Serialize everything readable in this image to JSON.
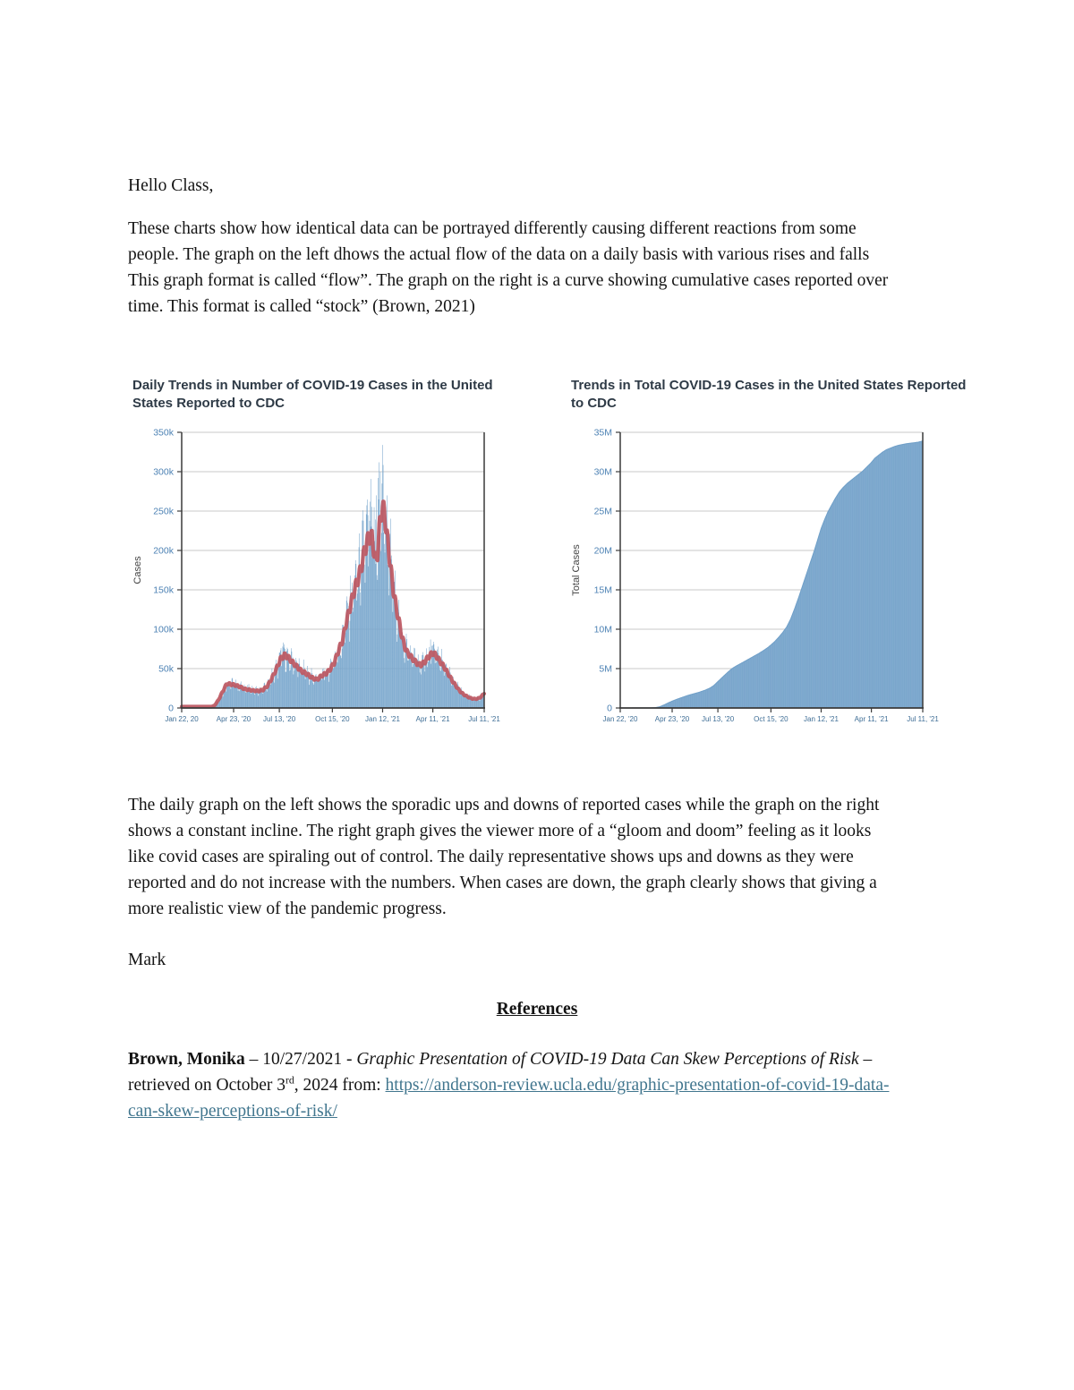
{
  "greeting": "Hello Class,",
  "intro_paragraph": "These charts show how identical data can be portrayed differently causing different reactions from some people. The graph on the left dhows the actual flow of the data on a daily basis with various rises and falls This graph format is called “flow”.  The graph on the right is a curve showing cumulative cases reported over time. This format is called “stock” (Brown, 2021)",
  "analysis_paragraph": "The daily graph on the left shows the sporadic ups and downs of reported cases while the graph on the right shows a constant incline. The right graph gives the viewer more of a “gloom and doom” feeling as it looks like covid cases are spiraling out of control. The daily representative shows ups and downs as they were reported and do not increase with the numbers. When cases are down, the graph clearly shows that giving a more realistic view of the pandemic progress.",
  "signature": "Mark",
  "references": {
    "heading": "References",
    "entry": {
      "author": "Brown, Monika",
      "dash1": " – ",
      "date": "10/27/2021",
      "dash2": " - ",
      "title_italic": "Graphic Presentation of COVID-19 Data Can Skew Perceptions of Risk",
      "retrieved_pre": " – retrieved on October 3",
      "ordinal": "rd",
      "retrieved_post": ", 2024 from: ",
      "link": "https://anderson-review.ucla.edu/graphic-presentation-of-covid-19-data-can-skew-perceptions-of-risk/"
    }
  },
  "chart_data": [
    {
      "type": "bar",
      "title": "Daily Trends in Number of COVID-19 Cases in the United States Reported to CDC",
      "xlabel": "",
      "ylabel": "Cases",
      "ylim": [
        0,
        350000
      ],
      "value_units": "thousands of cases",
      "ytick_labels": [
        "0",
        "50k",
        "100k",
        "150k",
        "200k",
        "250k",
        "300k",
        "350k"
      ],
      "xtick_labels": [
        "Jan 22, 20",
        "Apr 23, '20",
        "Jul 13, '20",
        "Oct 15, '20",
        "Jan 12, '21",
        "Apr 11, '21",
        "Jul 11, '21"
      ],
      "xtick_days": [
        0,
        92,
        173,
        267,
        356,
        445,
        536
      ],
      "x_span_days": 536,
      "grid": true,
      "legend": "none",
      "series": [
        {
          "name": "daily-reported-cases-bars",
          "color": "#79a7cd"
        },
        {
          "name": "7-day-moving-average-line",
          "color": "#bd5862"
        }
      ],
      "average_line_points": [
        [
          0,
          0.5
        ],
        [
          50,
          1
        ],
        [
          58,
          3
        ],
        [
          65,
          10
        ],
        [
          72,
          20
        ],
        [
          80,
          31
        ],
        [
          88,
          30
        ],
        [
          95,
          29
        ],
        [
          103,
          27
        ],
        [
          112,
          24
        ],
        [
          120,
          23
        ],
        [
          128,
          22
        ],
        [
          136,
          21.5
        ],
        [
          144,
          23
        ],
        [
          152,
          28
        ],
        [
          160,
          38
        ],
        [
          168,
          50
        ],
        [
          175,
          62
        ],
        [
          182,
          67
        ],
        [
          188,
          65
        ],
        [
          195,
          59
        ],
        [
          202,
          54
        ],
        [
          212,
          47
        ],
        [
          222,
          43
        ],
        [
          232,
          38
        ],
        [
          240,
          36
        ],
        [
          248,
          41
        ],
        [
          256,
          44
        ],
        [
          262,
          48
        ],
        [
          270,
          57
        ],
        [
          278,
          73
        ],
        [
          285,
          86
        ],
        [
          292,
          110
        ],
        [
          299,
          130
        ],
        [
          306,
          150
        ],
        [
          313,
          165
        ],
        [
          318,
          178
        ],
        [
          323,
          196
        ],
        [
          328,
          210
        ],
        [
          333,
          218
        ],
        [
          337,
          216
        ],
        [
          341,
          198
        ],
        [
          344,
          186
        ],
        [
          347,
          196
        ],
        [
          350,
          226
        ],
        [
          353,
          246
        ],
        [
          356,
          254
        ],
        [
          359,
          250
        ],
        [
          362,
          230
        ],
        [
          366,
          205
        ],
        [
          370,
          180
        ],
        [
          375,
          150
        ],
        [
          380,
          128
        ],
        [
          385,
          110
        ],
        [
          390,
          92
        ],
        [
          395,
          78
        ],
        [
          400,
          70
        ],
        [
          405,
          66
        ],
        [
          410,
          62
        ],
        [
          415,
          58
        ],
        [
          420,
          55
        ],
        [
          425,
          55
        ],
        [
          430,
          58
        ],
        [
          435,
          63
        ],
        [
          440,
          67
        ],
        [
          445,
          70
        ],
        [
          450,
          67
        ],
        [
          455,
          62
        ],
        [
          460,
          57
        ],
        [
          465,
          52
        ],
        [
          470,
          46
        ],
        [
          475,
          40
        ],
        [
          480,
          34
        ],
        [
          485,
          29
        ],
        [
          490,
          24
        ],
        [
          495,
          20
        ],
        [
          500,
          17
        ],
        [
          505,
          15
        ],
        [
          510,
          13
        ],
        [
          515,
          12
        ],
        [
          520,
          11.5
        ],
        [
          525,
          12
        ],
        [
          529,
          13.5
        ],
        [
          533,
          16
        ],
        [
          536,
          19
        ]
      ],
      "bar_spikes": {
        "176": 76,
        "179": 78,
        "299": 168,
        "320": 238,
        "327": 246,
        "334": 262,
        "341": 255,
        "345": 270,
        "348": 292,
        "350": 312,
        "352": 300,
        "355": 285,
        "443": 79,
        "447": 81
      },
      "tick_label_color": "#4d82b4",
      "xtick_label_color": "#3f6e96",
      "title_color": "#2e3a46"
    },
    {
      "type": "area",
      "title": "Trends in Total COVID-19 Cases in the United States Reported to CDC",
      "xlabel": "",
      "ylabel": "Total Cases",
      "ylim": [
        0,
        35000000
      ],
      "value_units": "millions of cases",
      "ytick_labels": [
        "0",
        "5M",
        "10M",
        "15M",
        "20M",
        "25M",
        "30M",
        "35M"
      ],
      "xtick_labels": [
        "Jan 22, '20",
        "Apr 23, '20",
        "Jul 13, '20",
        "Oct 15, '20",
        "Jan 12, '21",
        "Apr 11, '21",
        "Jul 11, '21"
      ],
      "xtick_days": [
        0,
        92,
        173,
        267,
        356,
        445,
        536
      ],
      "x_span_days": 536,
      "grid": true,
      "legend": "none",
      "series": [
        {
          "name": "cumulative-total-cases",
          "color": "#93b6d6"
        }
      ],
      "cumulative_points": [
        [
          0,
          0
        ],
        [
          55,
          0.02
        ],
        [
          62,
          0.05
        ],
        [
          70,
          0.16
        ],
        [
          78,
          0.4
        ],
        [
          85,
          0.65
        ],
        [
          92,
          0.87
        ],
        [
          100,
          1.1
        ],
        [
          110,
          1.35
        ],
        [
          120,
          1.6
        ],
        [
          130,
          1.8
        ],
        [
          140,
          2.0
        ],
        [
          150,
          2.25
        ],
        [
          158,
          2.5
        ],
        [
          165,
          2.8
        ],
        [
          173,
          3.35
        ],
        [
          181,
          3.9
        ],
        [
          190,
          4.5
        ],
        [
          198,
          5.0
        ],
        [
          206,
          5.35
        ],
        [
          215,
          5.7
        ],
        [
          225,
          6.1
        ],
        [
          235,
          6.5
        ],
        [
          245,
          6.9
        ],
        [
          255,
          7.35
        ],
        [
          262,
          7.7
        ],
        [
          267,
          8.0
        ],
        [
          274,
          8.45
        ],
        [
          281,
          9.0
        ],
        [
          288,
          9.6
        ],
        [
          295,
          10.3
        ],
        [
          302,
          11.3
        ],
        [
          309,
          12.6
        ],
        [
          316,
          14.0
        ],
        [
          323,
          15.5
        ],
        [
          330,
          17.0
        ],
        [
          337,
          18.5
        ],
        [
          344,
          20.0
        ],
        [
          350,
          21.4
        ],
        [
          356,
          22.8
        ],
        [
          362,
          23.9
        ],
        [
          368,
          24.9
        ],
        [
          374,
          25.7
        ],
        [
          381,
          26.6
        ],
        [
          388,
          27.4
        ],
        [
          395,
          28.0
        ],
        [
          402,
          28.5
        ],
        [
          409,
          28.9
        ],
        [
          416,
          29.3
        ],
        [
          423,
          29.7
        ],
        [
          430,
          30.1
        ],
        [
          437,
          30.6
        ],
        [
          444,
          31.1
        ],
        [
          451,
          31.7
        ],
        [
          458,
          32.1
        ],
        [
          465,
          32.5
        ],
        [
          472,
          32.8
        ],
        [
          479,
          33.0
        ],
        [
          486,
          33.2
        ],
        [
          493,
          33.35
        ],
        [
          500,
          33.45
        ],
        [
          507,
          33.55
        ],
        [
          514,
          33.62
        ],
        [
          521,
          33.68
        ],
        [
          528,
          33.75
        ],
        [
          536,
          33.9
        ]
      ],
      "stripe_color": "#6f9fc8",
      "tick_label_color": "#4d82b4",
      "xtick_label_color": "#3f6e96",
      "title_color": "#2e3a46"
    }
  ]
}
